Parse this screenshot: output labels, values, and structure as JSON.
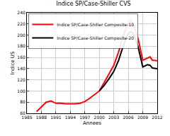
{
  "chart_data": {
    "type": "line",
    "title": "Indice SP/Case-Shiller CVS",
    "x_label": "Annees",
    "y_label": "Indice US",
    "x": [
      1987,
      1988,
      1989,
      1990,
      1991,
      1992,
      1993,
      1994,
      1995,
      1996,
      1997,
      1998,
      1999,
      2000,
      2001,
      2002,
      2003,
      2004,
      2005,
      2006,
      2006.5,
      2007,
      2008,
      2009,
      2009.5,
      2010,
      2010.5,
      2011,
      2012
    ],
    "series": [
      {
        "name": "Indice SP/Case-Shiller Composite-10",
        "color": "#ff0000",
        "values": [
          63,
          72,
          80,
          82,
          78,
          78,
          77,
          77,
          77,
          78,
          81,
          87,
          93,
          100,
          115,
          130,
          146,
          170,
          200,
          222,
          226,
          220,
          195,
          155,
          157,
          160,
          161,
          155,
          154
        ]
      },
      {
        "name": "Indice SP/Case-Shiller Composite-20",
        "color": "#000000",
        "values": [
          null,
          null,
          null,
          null,
          null,
          null,
          null,
          null,
          null,
          null,
          null,
          null,
          null,
          100,
          110,
          122,
          135,
          155,
          182,
          203,
          206,
          204,
          180,
          143,
          145,
          147,
          146,
          141,
          140
        ]
      }
    ],
    "xlim": [
      1985,
      2012
    ],
    "xticks": [
      1985,
      1988,
      1991,
      1994,
      1997,
      2000,
      2003,
      2006,
      2009,
      2012
    ],
    "ylim": [
      60,
      240
    ],
    "yticks": [
      60,
      80,
      100,
      120,
      140,
      160,
      180,
      200,
      220,
      240
    ],
    "grid": true,
    "legend": "upper left"
  }
}
